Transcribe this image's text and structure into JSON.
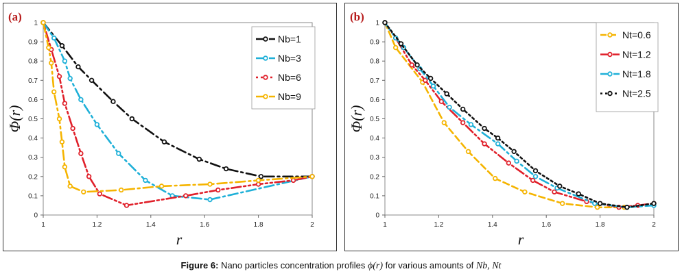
{
  "figure": {
    "caption_prefix": "Figure 6:",
    "caption_text": "Nano particles concentration profiles",
    "caption_symbol": "ϕ(r)",
    "caption_mid": "for various amounts of",
    "caption_vars": "Nb, Nt"
  },
  "chart_data": [
    {
      "panel": "(a)",
      "type": "line",
      "xlabel": "r",
      "ylabel": "Φ(r)",
      "xlim": [
        1,
        2
      ],
      "ylim": [
        0,
        1
      ],
      "xticks": [
        "1",
        "1.2",
        "1.4",
        "1.6",
        "1.8",
        "2"
      ],
      "yticks": [
        "0",
        "0.1",
        "0.2",
        "0.3",
        "0.4",
        "0.5",
        "0.6",
        "0.7",
        "0.8",
        "0.9",
        "1"
      ],
      "legend_position": "top-right",
      "series": [
        {
          "name": "Nb=1",
          "color": "#111111",
          "dash": "14,5,3,5",
          "x": [
            1.0,
            1.07,
            1.13,
            1.18,
            1.26,
            1.33,
            1.45,
            1.58,
            1.68,
            1.81,
            2.0
          ],
          "y": [
            1.0,
            0.88,
            0.77,
            0.7,
            0.59,
            0.5,
            0.38,
            0.29,
            0.24,
            0.2,
            0.2
          ]
        },
        {
          "name": "Nb=3",
          "color": "#1fb0d8",
          "dash": "14,5,3,5",
          "x": [
            1.0,
            1.04,
            1.08,
            1.1,
            1.14,
            1.2,
            1.28,
            1.38,
            1.48,
            1.62,
            2.0
          ],
          "y": [
            1.0,
            0.92,
            0.8,
            0.71,
            0.6,
            0.47,
            0.32,
            0.18,
            0.1,
            0.08,
            0.2
          ]
        },
        {
          "name": "Nb=6",
          "color": "#e0202a",
          "dash": "3,4,3,4,14,4",
          "x": [
            1.0,
            1.03,
            1.06,
            1.08,
            1.11,
            1.14,
            1.17,
            1.21,
            1.31,
            1.53,
            1.65,
            1.8,
            1.93,
            2.0
          ],
          "y": [
            1.0,
            0.86,
            0.72,
            0.58,
            0.45,
            0.32,
            0.2,
            0.11,
            0.05,
            0.1,
            0.13,
            0.16,
            0.18,
            0.2
          ]
        },
        {
          "name": "Nb=9",
          "color": "#f5b400",
          "dash": "14,5,3,5",
          "x": [
            1.0,
            1.02,
            1.03,
            1.04,
            1.06,
            1.07,
            1.08,
            1.1,
            1.15,
            1.29,
            1.44,
            1.62,
            1.8,
            2.0
          ],
          "y": [
            1.0,
            0.87,
            0.79,
            0.64,
            0.5,
            0.38,
            0.25,
            0.15,
            0.12,
            0.13,
            0.15,
            0.16,
            0.18,
            0.2
          ]
        }
      ]
    },
    {
      "panel": "(b)",
      "type": "line",
      "xlabel": "r",
      "ylabel": "Φ(r)",
      "xlim": [
        1,
        2
      ],
      "ylim": [
        0,
        1
      ],
      "xticks": [
        "1",
        "1.2",
        "1.4",
        "1.6",
        "1.8",
        "2"
      ],
      "yticks": [
        "0",
        "0.1",
        "0.2",
        "0.3",
        "0.4",
        "0.5",
        "0.6",
        "0.7",
        "0.8",
        "0.9",
        "1"
      ],
      "legend_position": "top-right",
      "series": [
        {
          "name": "Nt=0.6",
          "color": "#f5b400",
          "dash": "9,5",
          "x": [
            1.0,
            1.04,
            1.14,
            1.22,
            1.31,
            1.41,
            1.52,
            1.66,
            1.79,
            1.89
          ],
          "y": [
            1.0,
            0.87,
            0.69,
            0.48,
            0.33,
            0.19,
            0.12,
            0.06,
            0.04,
            0.04
          ]
        },
        {
          "name": "Nt=1.2",
          "color": "#e0202a",
          "dash": "14,4,3,4,3,4",
          "x": [
            1.0,
            1.04,
            1.1,
            1.15,
            1.21,
            1.29,
            1.37,
            1.46,
            1.55,
            1.63,
            1.75,
            1.87,
            1.94,
            2.0
          ],
          "y": [
            1.0,
            0.92,
            0.78,
            0.7,
            0.59,
            0.48,
            0.37,
            0.27,
            0.18,
            0.12,
            0.07,
            0.04,
            0.05,
            0.06
          ]
        },
        {
          "name": "Nt=1.8",
          "color": "#1fb0d8",
          "dash": "14,5,3,5",
          "x": [
            1.0,
            1.04,
            1.07,
            1.13,
            1.18,
            1.24,
            1.32,
            1.42,
            1.49,
            1.56,
            1.64,
            1.78,
            1.9,
            2.0
          ],
          "y": [
            1.0,
            0.92,
            0.87,
            0.76,
            0.67,
            0.56,
            0.47,
            0.37,
            0.28,
            0.2,
            0.14,
            0.06,
            0.04,
            0.05
          ]
        },
        {
          "name": "Nt=2.5",
          "color": "#111111",
          "dash": "3,4",
          "x": [
            1.0,
            1.06,
            1.12,
            1.17,
            1.23,
            1.29,
            1.37,
            1.42,
            1.48,
            1.56,
            1.65,
            1.72,
            1.8,
            1.9,
            2.0
          ],
          "y": [
            1.0,
            0.89,
            0.78,
            0.71,
            0.63,
            0.55,
            0.45,
            0.4,
            0.33,
            0.23,
            0.15,
            0.11,
            0.06,
            0.04,
            0.06
          ]
        }
      ]
    }
  ]
}
